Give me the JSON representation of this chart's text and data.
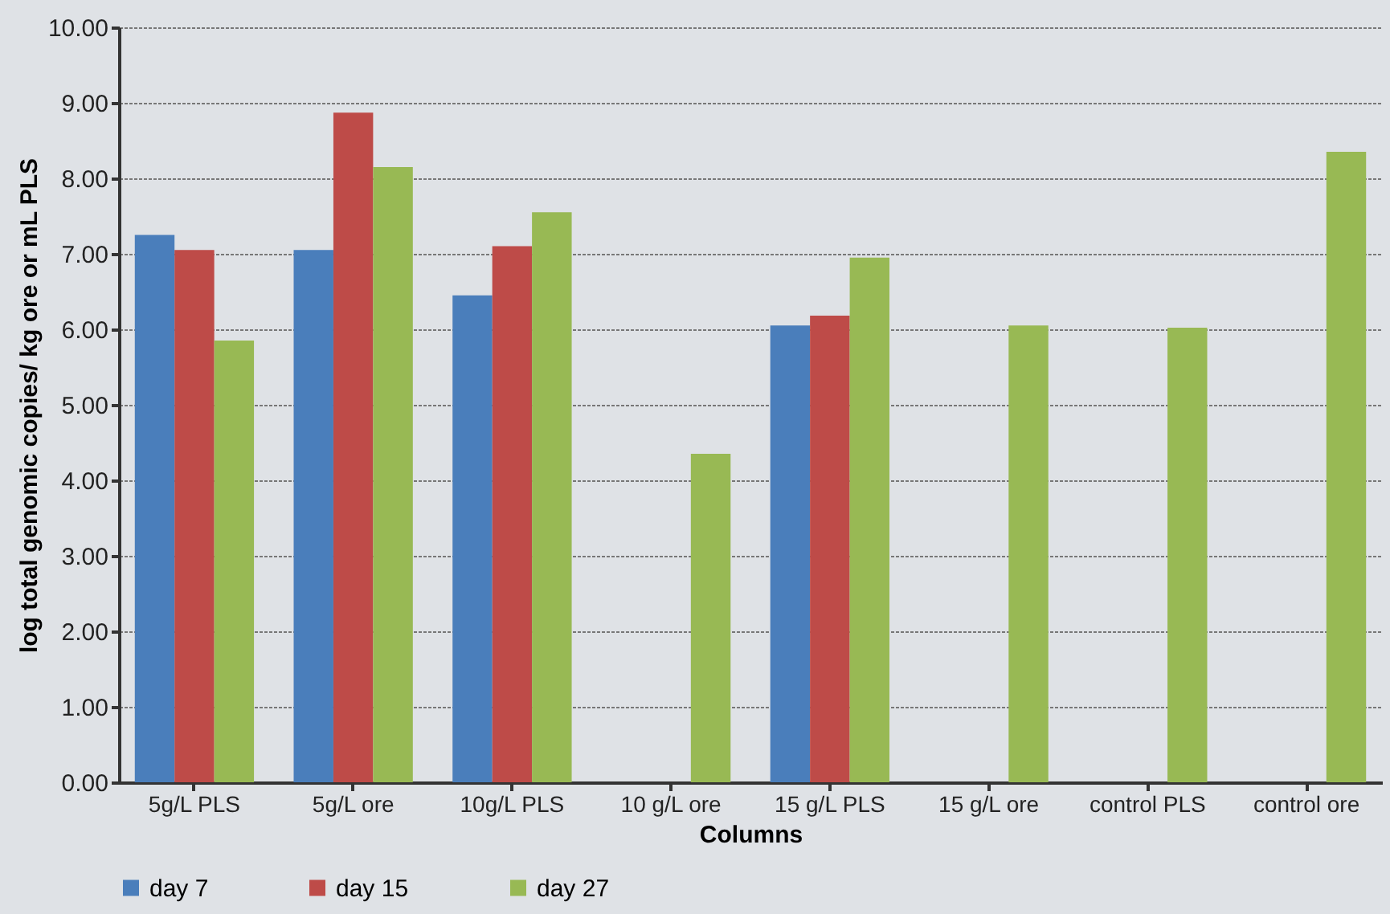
{
  "chart_data": {
    "type": "bar",
    "xlabel": "Columns",
    "ylabel": "log total genomic copies/ kg ore or mL PLS",
    "categories": [
      "5g/L PLS",
      "5g/L ore",
      "10g/L PLS",
      "10 g/L ore",
      "15 g/L PLS",
      "15 g/L ore",
      "control PLS",
      "control ore"
    ],
    "series": [
      {
        "name": "day 7",
        "color": "#4a7ebb",
        "values": [
          7.25,
          7.05,
          6.45,
          null,
          6.05,
          null,
          null,
          null
        ]
      },
      {
        "name": "day 15",
        "color": "#be4b48",
        "values": [
          7.05,
          8.87,
          7.1,
          null,
          6.18,
          null,
          null,
          null
        ]
      },
      {
        "name": "day 27",
        "color": "#98b954",
        "values": [
          5.85,
          8.15,
          7.55,
          4.35,
          6.95,
          6.05,
          6.02,
          8.35
        ]
      }
    ],
    "ylim": [
      0,
      10
    ],
    "yticks": [
      {
        "value": 0,
        "label": "0.00"
      },
      {
        "value": 1,
        "label": "1.00"
      },
      {
        "value": 2,
        "label": "2.00"
      },
      {
        "value": 3,
        "label": "3.00"
      },
      {
        "value": 4,
        "label": "4.00"
      },
      {
        "value": 5,
        "label": "5.00"
      },
      {
        "value": 6,
        "label": "6.00"
      },
      {
        "value": 7,
        "label": "7.00"
      },
      {
        "value": 8,
        "label": "8.00"
      },
      {
        "value": 9,
        "label": "9.00"
      },
      {
        "value": 10,
        "label": "10.00"
      }
    ],
    "grid": "y",
    "legend": "bottom"
  }
}
